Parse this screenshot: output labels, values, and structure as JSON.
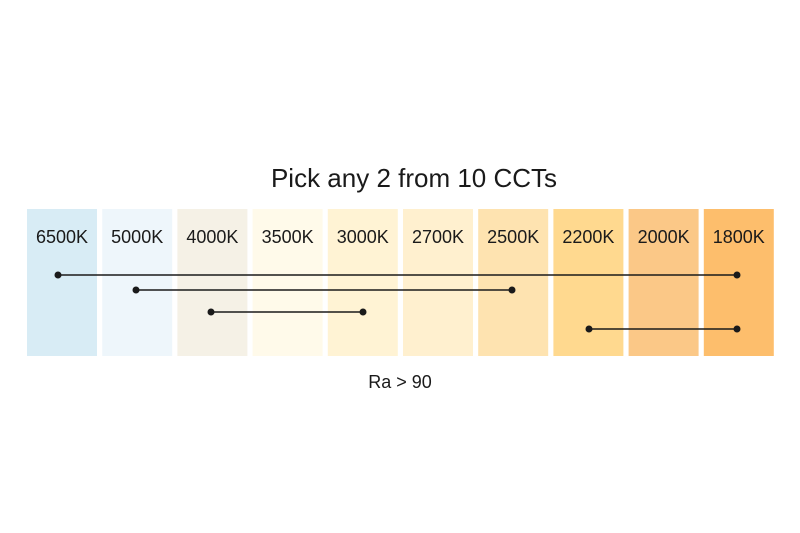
{
  "header": {
    "title": "Pick any 2 from 10 CCTs"
  },
  "cells": [
    "6500K",
    "5000K",
    "4000K",
    "3500K",
    "3000K",
    "2700K",
    "2500K",
    "2200K",
    "2000K",
    "1800K"
  ],
  "footnote": "Ra > 90"
}
